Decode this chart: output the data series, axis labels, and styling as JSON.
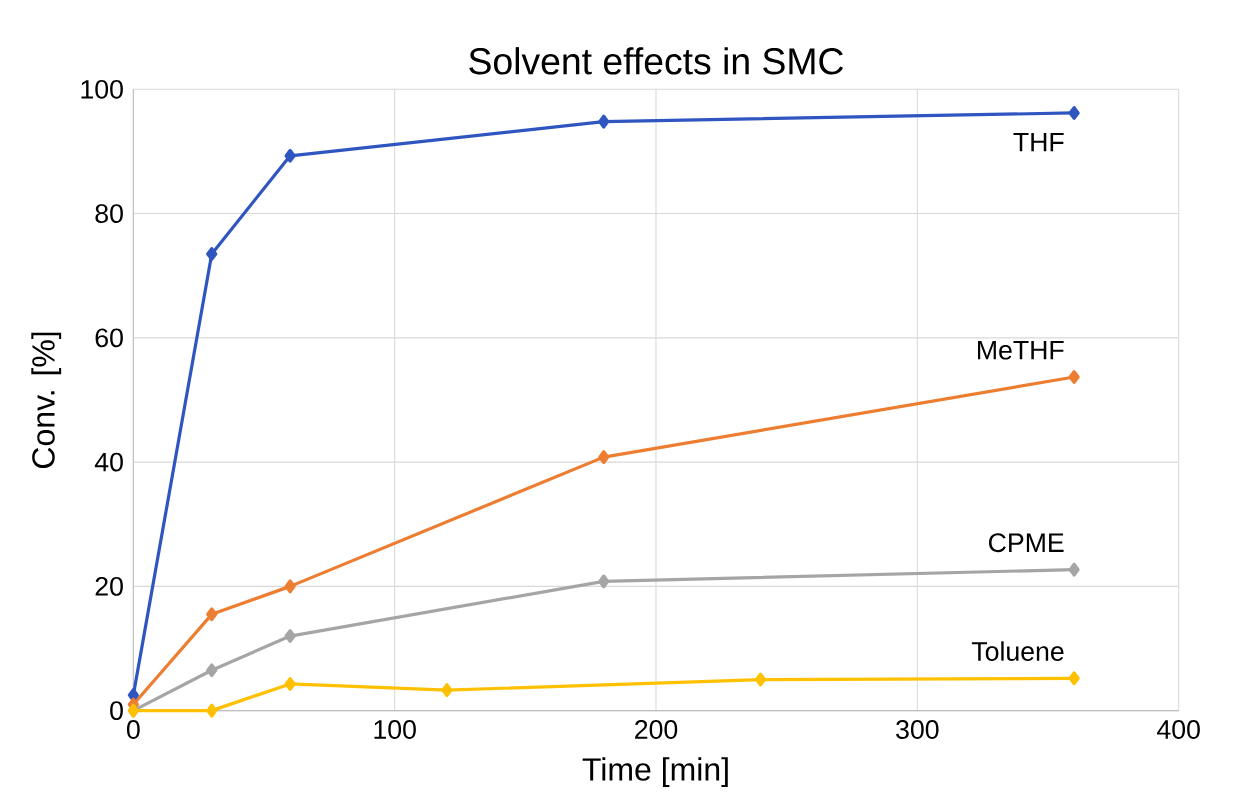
{
  "chart_data": {
    "type": "line",
    "title": "Solvent effects in SMC",
    "xlabel": "Time [min]",
    "ylabel": "Conv. [%]",
    "xlim": [
      0,
      400
    ],
    "ylim": [
      0,
      100
    ],
    "xticks": [
      0,
      100,
      200,
      300,
      400
    ],
    "yticks": [
      0,
      20,
      40,
      60,
      80,
      100
    ],
    "grid": true,
    "legend": false,
    "marker": "diamond",
    "line_style": "solid",
    "series": [
      {
        "name": "THF",
        "color": "#2f55c0",
        "x": [
          0,
          30,
          60,
          180,
          360
        ],
        "values": [
          2.5,
          73.5,
          89.3,
          94.8,
          96.2
        ]
      },
      {
        "name": "MeTHF",
        "color": "#ed7d31",
        "x": [
          0,
          30,
          60,
          180,
          360
        ],
        "values": [
          1,
          15.5,
          20,
          40.8,
          53.7
        ]
      },
      {
        "name": "CPME",
        "color": "#a5a5a5",
        "x": [
          0,
          30,
          60,
          180,
          360
        ],
        "values": [
          0,
          6.5,
          12,
          20.8,
          22.7
        ]
      },
      {
        "name": "Toluene",
        "color": "#ffc000",
        "x": [
          0,
          30,
          60,
          120,
          240,
          360
        ],
        "values": [
          0,
          0,
          4.3,
          3.3,
          5,
          5.2
        ]
      }
    ]
  }
}
